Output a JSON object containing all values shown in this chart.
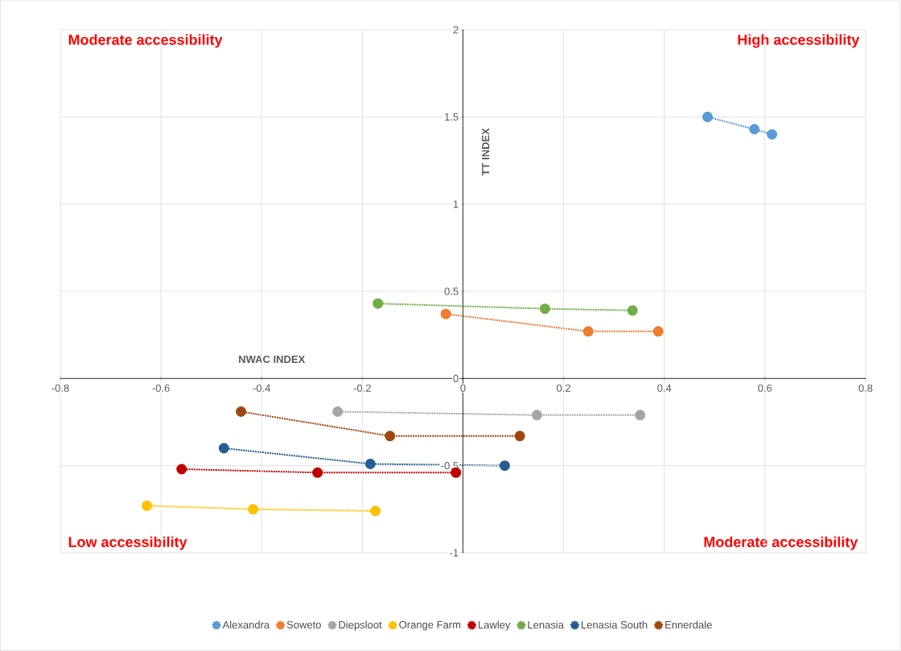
{
  "chart_data": {
    "type": "line",
    "xlabel": "NWAC INDEX",
    "ylabel": "TT INDEX",
    "annotations": [
      "Moderate accessibility",
      "High accessibility",
      "Low accessibility",
      "Moderate accessibility"
    ],
    "xlim": [
      -0.8,
      0.8
    ],
    "ylim": [
      -1,
      2
    ],
    "xticks": [
      -0.8,
      -0.6,
      -0.4,
      -0.2,
      0,
      0.2,
      0.4,
      0.6,
      0.8
    ],
    "yticks": [
      -1,
      -0.5,
      0,
      0.5,
      1,
      1.5,
      2
    ],
    "grid": true,
    "legend": "bottom",
    "marker": "circle",
    "line_style": "dotted",
    "series": [
      {
        "name": "Alexandra",
        "color": "#5b9bd5",
        "x": [
          0.486,
          0.579,
          0.614
        ],
        "values": [
          1.5,
          1.43,
          1.4
        ]
      },
      {
        "name": "Soweto",
        "color": "#ed7d31",
        "x": [
          -0.034,
          0.249,
          0.388
        ],
        "values": [
          0.37,
          0.27,
          0.27
        ]
      },
      {
        "name": "Diepsloot",
        "color": "#a5a5a5",
        "x": [
          -0.249,
          0.147,
          0.352
        ],
        "values": [
          -0.19,
          -0.21,
          -0.21
        ]
      },
      {
        "name": "Orange Farm",
        "color": "#ffc000",
        "x": [
          -0.628,
          -0.417,
          -0.174
        ],
        "values": [
          -0.73,
          -0.75,
          -0.76
        ]
      },
      {
        "name": "Lawley",
        "color": "#c00000",
        "x": [
          -0.559,
          -0.289,
          -0.014
        ],
        "values": [
          -0.52,
          -0.54,
          -0.54
        ]
      },
      {
        "name": "Lenasia",
        "color": "#70ad47",
        "x": [
          -0.169,
          0.163,
          0.337
        ],
        "values": [
          0.43,
          0.4,
          0.39
        ]
      },
      {
        "name": "Lenasia South",
        "color": "#255e91",
        "x": [
          -0.475,
          -0.184,
          0.083
        ],
        "values": [
          -0.4,
          -0.49,
          -0.5
        ]
      },
      {
        "name": "Ennerdale",
        "color": "#9e480e",
        "x": [
          -0.441,
          -0.145,
          0.113
        ],
        "values": [
          -0.19,
          -0.33,
          -0.33
        ]
      }
    ]
  }
}
